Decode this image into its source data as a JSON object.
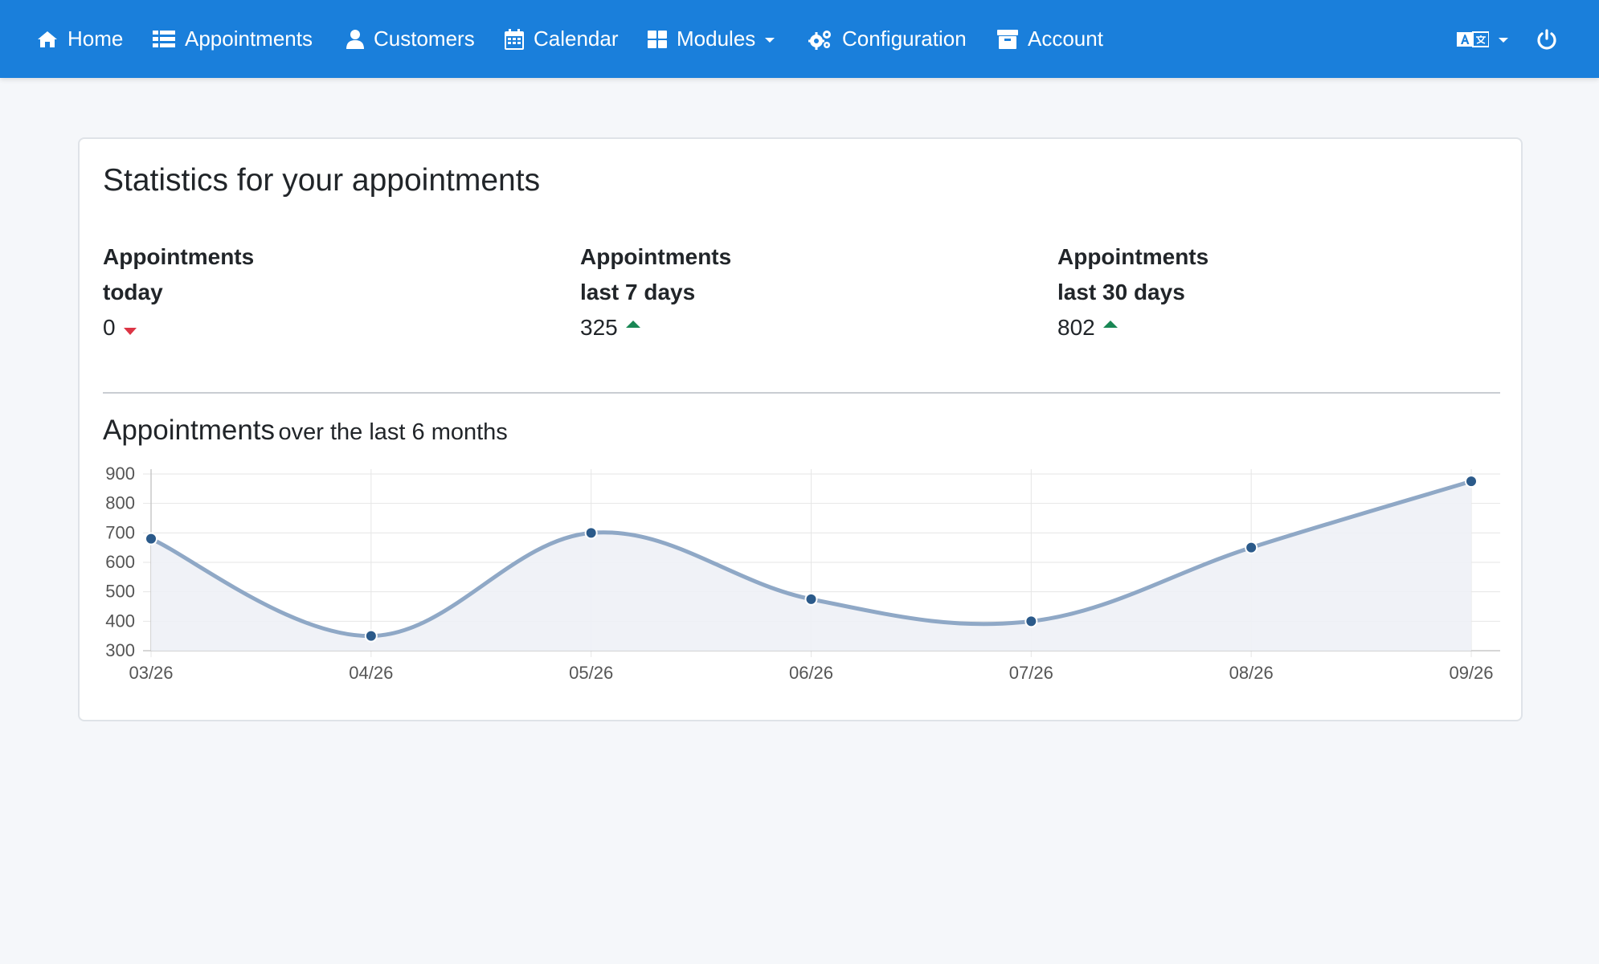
{
  "nav": {
    "home": "Home",
    "appointments": "Appointments",
    "customers": "Customers",
    "calendar": "Calendar",
    "modules": "Modules",
    "configuration": "Configuration",
    "account": "Account"
  },
  "colors": {
    "navbar": "#1a7fdb",
    "line": "#8fa8c6",
    "point": "#2b5a8a",
    "fill": "#eef1f6",
    "down": "#dc3545",
    "up": "#198754"
  },
  "card": {
    "title": "Statistics for your appointments",
    "stats": [
      {
        "label_line1": "Appointments",
        "label_line2": "today",
        "value": "0",
        "trend": "down"
      },
      {
        "label_line1": "Appointments",
        "label_line2": "last 7 days",
        "value": "325",
        "trend": "up"
      },
      {
        "label_line1": "Appointments",
        "label_line2": "last 30 days",
        "value": "802",
        "trend": "up"
      }
    ],
    "chart_heading_main": "Appointments",
    "chart_heading_sub": "over the last 6 months"
  },
  "chart_data": {
    "type": "area",
    "categories": [
      "03/26",
      "04/26",
      "05/26",
      "06/26",
      "07/26",
      "08/26",
      "09/26"
    ],
    "values": [
      680,
      350,
      700,
      475,
      400,
      650,
      875
    ],
    "ylim": [
      300,
      900
    ],
    "yticks": [
      300,
      400,
      500,
      600,
      700,
      800,
      900
    ],
    "grid": true,
    "smooth": true
  }
}
